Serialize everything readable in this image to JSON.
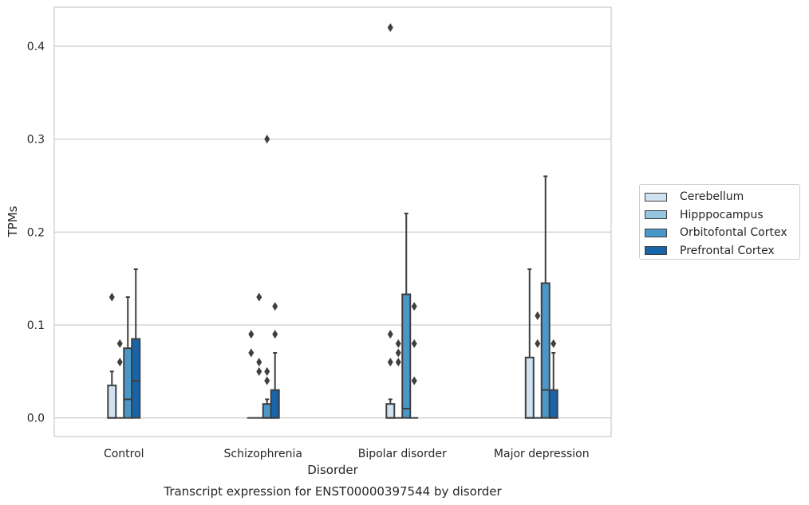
{
  "chart_data": {
    "type": "box",
    "title": "Transcript expression for ENST00000397544 by disorder",
    "xlabel": "Disorder",
    "ylabel": "TPMs",
    "ylim": [
      -0.02,
      0.442
    ],
    "yticks": [
      0.0,
      0.1,
      0.2,
      0.3,
      0.4
    ],
    "ytick_labels": [
      "0.0",
      "0.1",
      "0.2",
      "0.3",
      "0.4"
    ],
    "grid": "horizontal",
    "legend_position": "right",
    "categories": [
      "Control",
      "Schizophrenia",
      "Bipolar disorder",
      "Major depression"
    ],
    "series": [
      {
        "name": "Cerebellum",
        "color": "#d0e1f2",
        "boxes": [
          {
            "q1": 0.0,
            "median": 0.0,
            "q3": 0.035,
            "whislo": 0.0,
            "whishi": 0.05,
            "fliers": [
              0.13
            ]
          },
          {
            "q1": 0.0,
            "median": 0.0,
            "q3": 0.0,
            "whislo": 0.0,
            "whishi": 0.0,
            "fliers": [
              0.09,
              0.07
            ]
          },
          {
            "q1": 0.0,
            "median": 0.0,
            "q3": 0.015,
            "whislo": 0.0,
            "whishi": 0.02,
            "fliers": [
              0.42,
              0.09,
              0.06
            ]
          },
          {
            "q1": 0.0,
            "median": 0.0,
            "q3": 0.065,
            "whislo": 0.0,
            "whishi": 0.16,
            "fliers": []
          }
        ]
      },
      {
        "name": "Hipppocampus",
        "color": "#94c4df",
        "boxes": [
          {
            "q1": 0.0,
            "median": 0.0,
            "q3": 0.0,
            "whislo": 0.0,
            "whishi": 0.0,
            "fliers": [
              0.08,
              0.06
            ]
          },
          {
            "q1": 0.0,
            "median": 0.0,
            "q3": 0.0,
            "whislo": 0.0,
            "whishi": 0.0,
            "fliers": [
              0.13,
              0.06,
              0.05
            ]
          },
          {
            "q1": 0.0,
            "median": 0.0,
            "q3": 0.0,
            "whislo": 0.0,
            "whishi": 0.0,
            "fliers": [
              0.08,
              0.07,
              0.06
            ]
          },
          {
            "q1": 0.0,
            "median": 0.0,
            "q3": 0.0,
            "whislo": 0.0,
            "whishi": 0.0,
            "fliers": [
              0.11,
              0.08
            ]
          }
        ]
      },
      {
        "name": "Orbitofontal Cortex",
        "color": "#4a98c9",
        "boxes": [
          {
            "q1": 0.0,
            "median": 0.02,
            "q3": 0.075,
            "whislo": 0.0,
            "whishi": 0.13,
            "fliers": []
          },
          {
            "q1": 0.0,
            "median": 0.0,
            "q3": 0.015,
            "whislo": 0.0,
            "whishi": 0.02,
            "fliers": [
              0.3,
              0.05,
              0.04
            ]
          },
          {
            "q1": 0.0,
            "median": 0.01,
            "q3": 0.133,
            "whislo": 0.0,
            "whishi": 0.22,
            "fliers": []
          },
          {
            "q1": 0.0,
            "median": 0.03,
            "q3": 0.145,
            "whislo": 0.0,
            "whishi": 0.26,
            "fliers": []
          }
        ]
      },
      {
        "name": "Prefrontal Cortex",
        "color": "#1764ab",
        "boxes": [
          {
            "q1": 0.0,
            "median": 0.04,
            "q3": 0.085,
            "whislo": 0.0,
            "whishi": 0.16,
            "fliers": []
          },
          {
            "q1": 0.0,
            "median": 0.0,
            "q3": 0.03,
            "whislo": 0.0,
            "whishi": 0.07,
            "fliers": [
              0.12,
              0.09
            ]
          },
          {
            "q1": 0.0,
            "median": 0.0,
            "q3": 0.0,
            "whislo": 0.0,
            "whishi": 0.0,
            "fliers": [
              0.12,
              0.08,
              0.04
            ]
          },
          {
            "q1": 0.0,
            "median": 0.0,
            "q3": 0.03,
            "whislo": 0.0,
            "whishi": 0.07,
            "fliers": [
              0.08
            ]
          }
        ]
      }
    ]
  }
}
